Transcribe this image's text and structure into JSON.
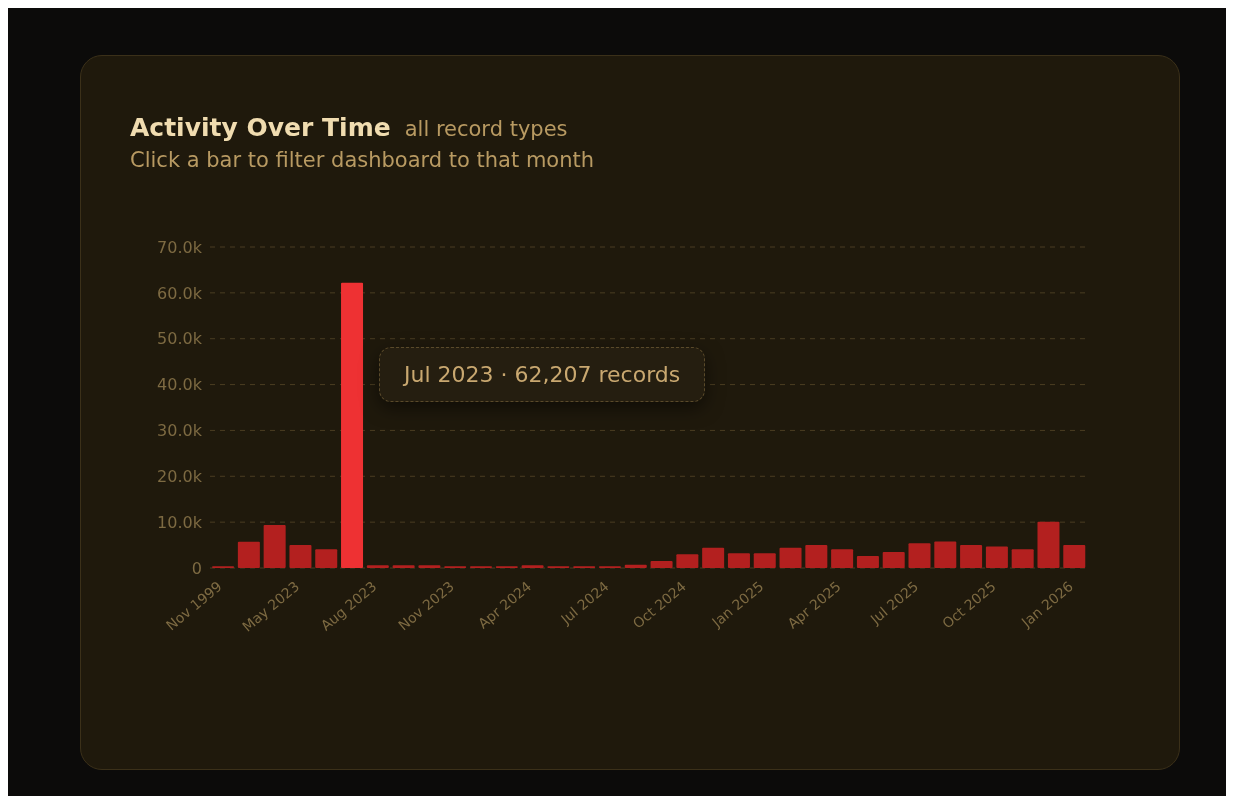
{
  "chart_data": {
    "type": "bar",
    "title": "Activity Over Time",
    "subtitle": "all record types",
    "annotations": [
      "Click a bar to filter dashboard to that month",
      "Jul 2023 · 62,207 records"
    ],
    "categories": [
      "Nov 1999",
      null,
      null,
      "May 2023",
      null,
      null,
      "Aug 2023",
      null,
      null,
      "Nov 2023",
      null,
      null,
      "Apr 2024",
      null,
      null,
      "Jul 2024",
      null,
      null,
      "Oct 2024",
      null,
      null,
      "Jan 2025",
      null,
      null,
      "Apr 2025",
      null,
      null,
      "Jul 2025",
      null,
      null,
      "Oct 2025",
      null,
      null,
      "Jan 2026"
    ],
    "values": [
      400,
      5700,
      9400,
      5000,
      4100,
      62207,
      600,
      600,
      600,
      400,
      400,
      400,
      600,
      400,
      400,
      400,
      700,
      1500,
      3000,
      4400,
      3200,
      3200,
      4400,
      5000,
      4100,
      2600,
      3500,
      5400,
      5800,
      5000,
      4700,
      4100,
      10100,
      5000
    ],
    "colors": [
      "#b3201f",
      "#b3201f",
      "#b3201f",
      "#b3201f",
      "#b3201f",
      "#ee3133",
      "#b3201f",
      "#b3201f",
      "#b3201f",
      "#b3201f",
      "#b3201f",
      "#b3201f",
      "#b3201f",
      "#b3201f",
      "#b3201f",
      "#b3201f",
      "#b3201f",
      "#b3201f",
      "#b3201f",
      "#b3201f",
      "#b3201f",
      "#b3201f",
      "#b3201f",
      "#b3201f",
      "#b3201f",
      "#b3201f",
      "#b3201f",
      "#b3201f",
      "#b3201f",
      "#b3201f",
      "#b3201f",
      "#b3201f",
      "#b3201f",
      "#b3201f"
    ],
    "ylim": [
      0,
      70000
    ],
    "yticks": [
      0,
      {
        "value": 10000,
        "label": "10.0k"
      },
      {
        "value": 20000,
        "label": "20.0k"
      },
      {
        "value": 30000,
        "label": "30.0k"
      },
      {
        "value": 40000,
        "label": "40.0k"
      },
      {
        "value": 50000,
        "label": "50.0k"
      },
      {
        "value": 60000,
        "label": "60.0k"
      },
      {
        "value": 70000,
        "label": "70.0k"
      }
    ],
    "grid": "y",
    "legend": false
  }
}
